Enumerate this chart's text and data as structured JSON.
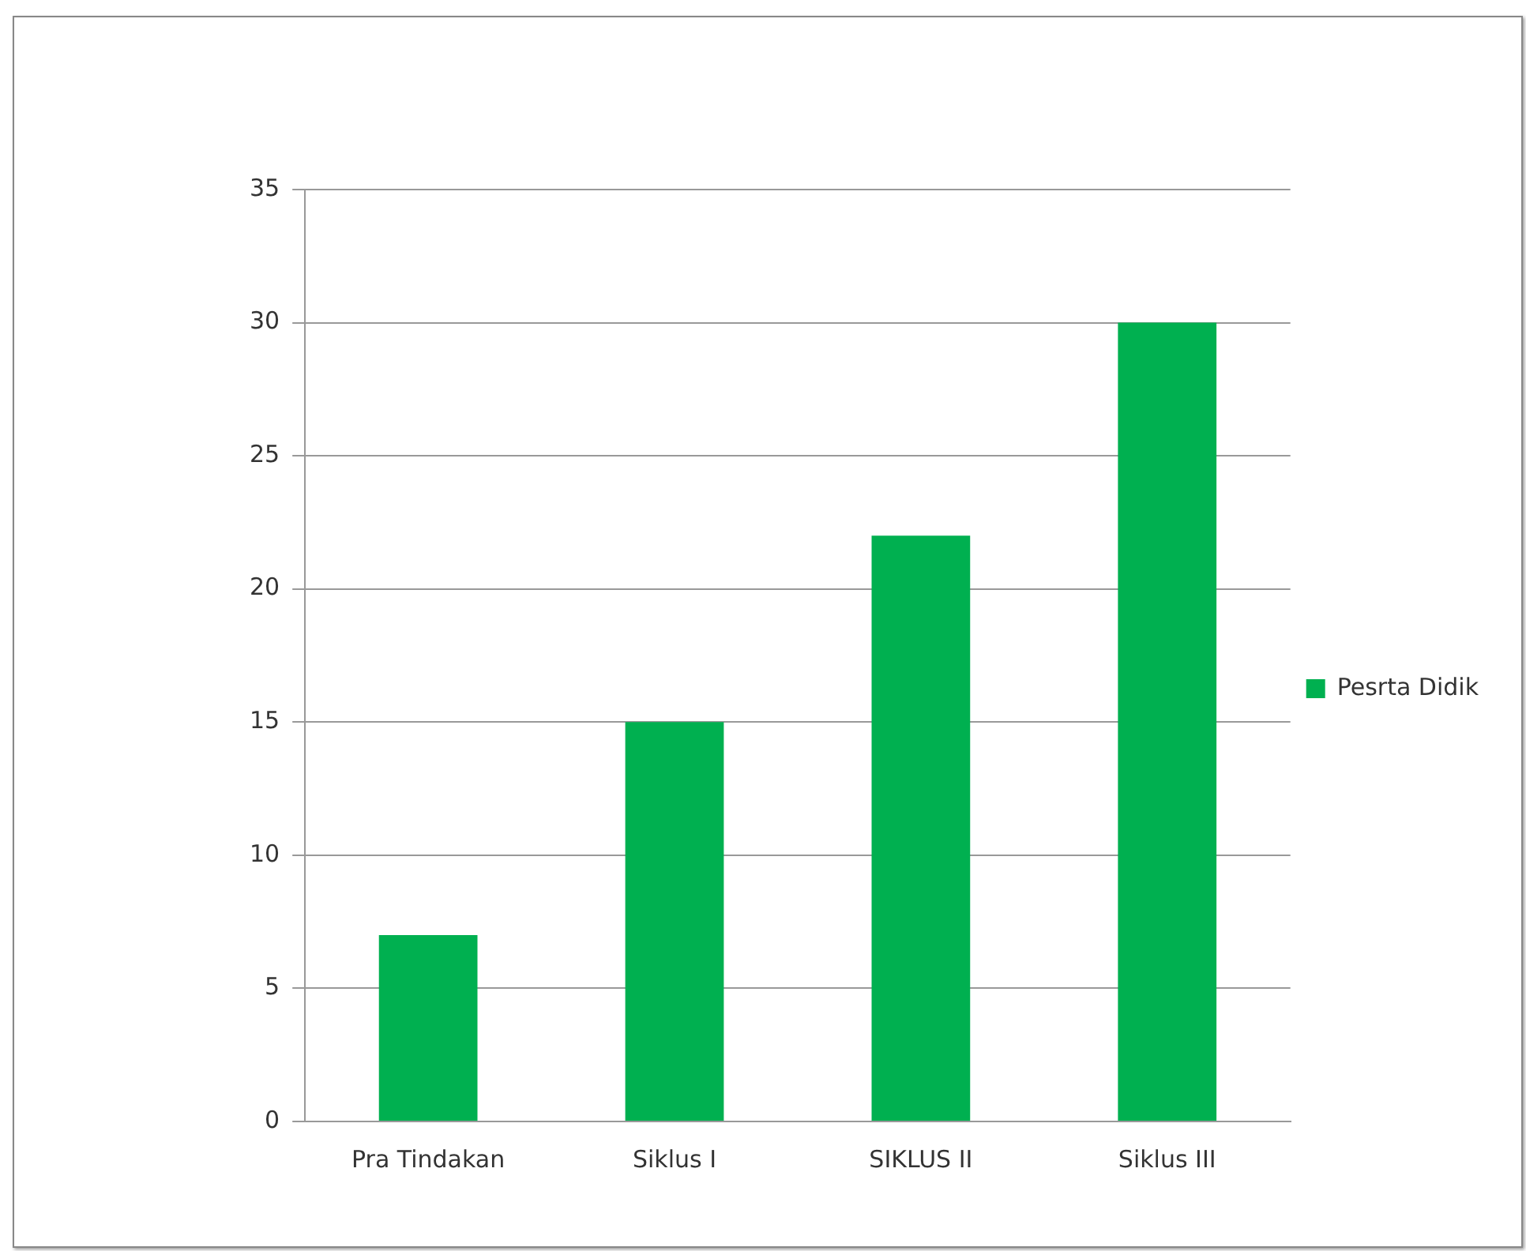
{
  "chart_data": {
    "type": "bar",
    "categories": [
      "Pra Tindakan",
      "Siklus I",
      "SIKLUS II",
      "Siklus III"
    ],
    "series": [
      {
        "name": "Pesrta Didik",
        "color": "#00b050",
        "values": [
          7,
          15,
          22,
          30
        ]
      }
    ],
    "ylim": [
      0,
      35
    ],
    "yticks": [
      0,
      5,
      10,
      15,
      20,
      25,
      30,
      35
    ],
    "grid": "y",
    "legend": "right"
  }
}
